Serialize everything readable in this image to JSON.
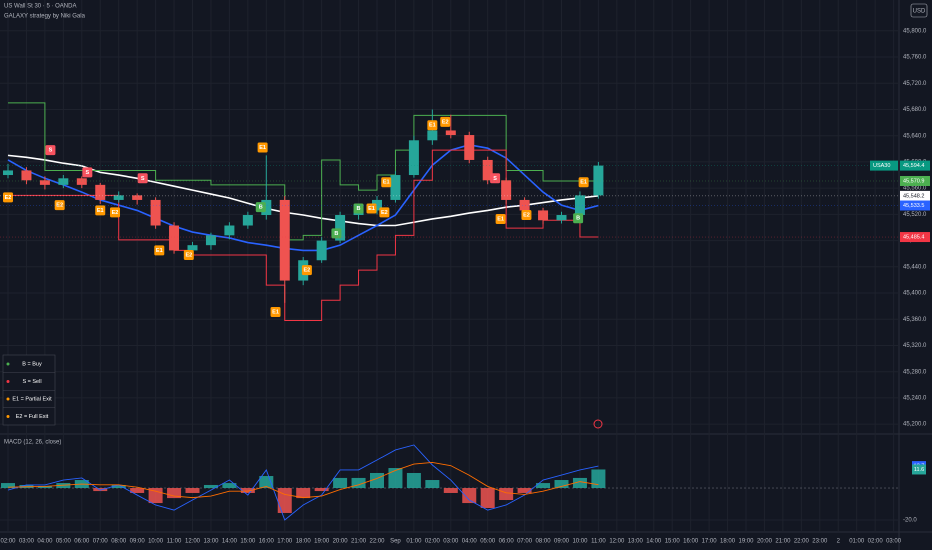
{
  "chart_data": [
    {
      "type": "candlestick",
      "title": "US Wall St 30 · 5 · OANDA",
      "subtitle": "GALAXY strategy by Niki Gala",
      "currency": "USD",
      "x": [
        0,
        1,
        2,
        3,
        4,
        5,
        6,
        7,
        8,
        9,
        10,
        11,
        12,
        13,
        14,
        15,
        16,
        17,
        18,
        19,
        20,
        21,
        22,
        23,
        24,
        25,
        26,
        27,
        28,
        29,
        30,
        31,
        32
      ],
      "open": [
        45580,
        45587,
        45572,
        45565,
        45575,
        45565,
        45542,
        45549,
        45542,
        45503,
        45465,
        45473,
        45488,
        45503,
        45519,
        45542,
        45419,
        45450,
        45480,
        45519,
        45526,
        45542,
        45580,
        45633,
        45648,
        45641,
        45603,
        45572,
        45542,
        45526,
        45511,
        45519,
        45549
      ],
      "high": [
        45597,
        45592,
        45578,
        45580,
        45578,
        45568,
        45555,
        45552,
        45546,
        45508,
        45478,
        45492,
        45508,
        45524,
        45610,
        45548,
        45455,
        45486,
        45524,
        45532,
        45548,
        45586,
        45640,
        45680,
        45672,
        45646,
        45608,
        45576,
        45546,
        45530,
        45524,
        45555,
        45600
      ],
      "low": [
        45575,
        45566,
        45558,
        45560,
        45560,
        45536,
        45538,
        45535,
        45498,
        45460,
        45458,
        45466,
        45482,
        45498,
        45512,
        45385,
        45412,
        45446,
        45476,
        45512,
        45520,
        45538,
        45576,
        45626,
        45636,
        45598,
        45566,
        45536,
        45520,
        45505,
        45506,
        45514,
        45544
      ],
      "close": [
        45587,
        45572,
        45565,
        45575,
        45565,
        45542,
        45549,
        45542,
        45503,
        45465,
        45473,
        45488,
        45503,
        45519,
        45542,
        45419,
        45450,
        45480,
        45519,
        45526,
        45542,
        45580,
        45633,
        45648,
        45641,
        45603,
        45572,
        45542,
        45526,
        45511,
        45519,
        45549,
        45594.4
      ],
      "up_color": "#26a69a",
      "down_color": "#ef5350",
      "lines": [
        {
          "color": "#ffffff",
          "step": false,
          "values": [
            45610,
            45607,
            45603,
            45598,
            45594,
            45584,
            45580,
            45575,
            45569,
            45563,
            45557,
            45551,
            45545,
            45537,
            45529,
            45523,
            45519,
            45514,
            45510,
            45506,
            45503,
            45503,
            45508,
            45513,
            45517,
            45522,
            45526,
            45531,
            45534,
            45538,
            45542,
            45545,
            45548.2
          ]
        },
        {
          "color": "#2962ff",
          "step": false,
          "values": [
            45603,
            45587,
            45575,
            45565,
            45554,
            45542,
            45534,
            45526,
            45514,
            45502,
            45493,
            45488,
            45484,
            45477,
            45473,
            45468,
            45465,
            45465,
            45473,
            45488,
            45503,
            45519,
            45557,
            45595,
            45618,
            45626,
            45621,
            45606,
            45580,
            45554,
            45534,
            45526,
            45533.5
          ]
        },
        {
          "color": "#4caf50",
          "step": true,
          "values": [
            45690,
            45690,
            45587,
            45587,
            45587,
            45587,
            45587,
            45587,
            45572,
            45572,
            45572,
            45565,
            45565,
            45565,
            45565,
            45481,
            45488,
            45603,
            45565,
            45557,
            45580,
            45618,
            45671,
            45671,
            45671,
            45671,
            45671,
            45587,
            45587,
            45570.9,
            45570.9,
            45570.9,
            45570.9
          ]
        },
        {
          "color": "#f23645",
          "step": true,
          "values": [
            45549,
            45549,
            45549,
            45549,
            45549,
            45549,
            45481,
            45481,
            45481,
            45465,
            45458,
            45458,
            45458,
            45458,
            45412,
            45358,
            45358,
            45389,
            45412,
            45435,
            45458,
            45488,
            45572,
            45618,
            45618,
            45618,
            45618,
            45499,
            45499,
            45511,
            45511,
            45485.4,
            45485.4
          ]
        }
      ],
      "signals": [
        {
          "label": "E2",
          "x": 0,
          "price": 45546,
          "color": "#ff9800"
        },
        {
          "label": "S",
          "x": 2.3,
          "price": 45618,
          "color": "#f7525f"
        },
        {
          "label": "E2",
          "x": 2.8,
          "price": 45534,
          "color": "#ff9800"
        },
        {
          "label": "S",
          "x": 4.3,
          "price": 45584,
          "color": "#f7525f"
        },
        {
          "label": "E1",
          "x": 5,
          "price": 45526,
          "color": "#ff9800"
        },
        {
          "label": "E2",
          "x": 5.8,
          "price": 45523,
          "color": "#ff9800"
        },
        {
          "label": "S",
          "x": 7.3,
          "price": 45575,
          "color": "#f7525f"
        },
        {
          "label": "E1",
          "x": 8.2,
          "price": 45465,
          "color": "#ff9800"
        },
        {
          "label": "E2",
          "x": 9.8,
          "price": 45458,
          "color": "#ff9800"
        },
        {
          "label": "B",
          "x": 13.7,
          "price": 45531,
          "color": "#4caf50"
        },
        {
          "label": "E1",
          "x": 13.8,
          "price": 45622,
          "color": "#ff9800"
        },
        {
          "label": "E1",
          "x": 14.5,
          "price": 45371,
          "color": "#ff9800"
        },
        {
          "label": "E2",
          "x": 16.2,
          "price": 45435,
          "color": "#ff9800"
        },
        {
          "label": "B",
          "x": 17.8,
          "price": 45491,
          "color": "#4caf50"
        },
        {
          "label": "B",
          "x": 19,
          "price": 45529,
          "color": "#4caf50"
        },
        {
          "label": "E1",
          "x": 19.7,
          "price": 45529,
          "color": "#ff9800"
        },
        {
          "label": "E2",
          "x": 20.4,
          "price": 45523,
          "color": "#ff9800"
        },
        {
          "label": "E1",
          "x": 20.5,
          "price": 45569,
          "color": "#ff9800"
        },
        {
          "label": "E1",
          "x": 23,
          "price": 45656,
          "color": "#ff9800"
        },
        {
          "label": "E2",
          "x": 23.7,
          "price": 45661,
          "color": "#ff9800"
        },
        {
          "label": "S",
          "x": 26.4,
          "price": 45575,
          "color": "#f7525f"
        },
        {
          "label": "E1",
          "x": 26.7,
          "price": 45513,
          "color": "#ff9800"
        },
        {
          "label": "E2",
          "x": 28.1,
          "price": 45519,
          "color": "#ff9800"
        },
        {
          "label": "B",
          "x": 30.9,
          "price": 45514,
          "color": "#4caf50"
        },
        {
          "label": "E1",
          "x": 31.2,
          "price": 45569,
          "color": "#ff9800"
        }
      ],
      "legend": [
        {
          "text": "B = Buy",
          "color": "#4caf50"
        },
        {
          "text": "S = Sell",
          "color": "#f23645"
        },
        {
          "text": "E1 = Partial Exit",
          "color": "#ff9800"
        },
        {
          "text": "E2 = Full Exit",
          "color": "#ff9800"
        }
      ],
      "price_tags": [
        {
          "value": 45594.4,
          "label": "45,594.4",
          "name": "USA30",
          "color": "#089981"
        },
        {
          "value": 45570.9,
          "label": "45,570.9",
          "color": "#4caf50"
        },
        {
          "value": 45548.2,
          "label": "45,548.2",
          "color": "#ffffff"
        },
        {
          "value": 45533.5,
          "label": "45,533.5",
          "color": "#2962ff"
        },
        {
          "value": 45485.4,
          "label": "45,485.4",
          "color": "#f23645"
        }
      ],
      "ylim": [
        45188,
        45847
      ],
      "yticks": [
        {
          "value": 45200,
          "label": "45,200.0"
        },
        {
          "value": 45240,
          "label": "45,240.0"
        },
        {
          "value": 45280,
          "label": "45,280.0"
        },
        {
          "value": 45320,
          "label": "45,320.0"
        },
        {
          "value": 45360,
          "label": "45,360.0"
        },
        {
          "value": 45400,
          "label": "45,400.0"
        },
        {
          "value": 45440,
          "label": "45,440.0"
        },
        {
          "value": 45480,
          "label": "45,480.0"
        },
        {
          "value": 45520,
          "label": "45,520.0"
        },
        {
          "value": 45560,
          "label": "45,560.0"
        },
        {
          "value": 45600,
          "label": "45,600.0"
        },
        {
          "value": 45640,
          "label": "45,640.0"
        },
        {
          "value": 45680,
          "label": "45,680.0"
        },
        {
          "value": 45720,
          "label": "45,720.0"
        },
        {
          "value": 45760,
          "label": "45,760.0"
        },
        {
          "value": 45800,
          "label": "45,800.0"
        }
      ],
      "xticks": [
        {
          "value": 0,
          "label": "02:00"
        },
        {
          "value": 1,
          "label": "03:00"
        },
        {
          "value": 2,
          "label": "04:00"
        },
        {
          "value": 3,
          "label": "05:00"
        },
        {
          "value": 4,
          "label": "06:00"
        },
        {
          "value": 5,
          "label": "07:00"
        },
        {
          "value": 6,
          "label": "08:00"
        },
        {
          "value": 7,
          "label": "09:00"
        },
        {
          "value": 8,
          "label": "10:00"
        },
        {
          "value": 9,
          "label": "11:00"
        },
        {
          "value": 10,
          "label": "12:00"
        },
        {
          "value": 11,
          "label": "13:00"
        },
        {
          "value": 12,
          "label": "14:00"
        },
        {
          "value": 13,
          "label": "15:00"
        },
        {
          "value": 14,
          "label": "16:00"
        },
        {
          "value": 15,
          "label": "17:00"
        },
        {
          "value": 16,
          "label": "18:00"
        },
        {
          "value": 17,
          "label": "19:00"
        },
        {
          "value": 18,
          "label": "20:00"
        },
        {
          "value": 19,
          "label": "21:00"
        },
        {
          "value": 20,
          "label": "22:00"
        },
        {
          "value": 21,
          "label": "Sep"
        },
        {
          "value": 22,
          "label": "01:00"
        },
        {
          "value": 23,
          "label": "02:00"
        },
        {
          "value": 24,
          "label": "03:00"
        },
        {
          "value": 25,
          "label": "04:00"
        },
        {
          "value": 26,
          "label": "05:00"
        },
        {
          "value": 27,
          "label": "06:00"
        },
        {
          "value": 28,
          "label": "07:00"
        },
        {
          "value": 29,
          "label": "08:00"
        },
        {
          "value": 30,
          "label": "09:00"
        },
        {
          "value": 31,
          "label": "10:00"
        },
        {
          "value": 32,
          "label": "11:00"
        },
        {
          "value": 33,
          "label": "12:00"
        },
        {
          "value": 34,
          "label": "13:00"
        },
        {
          "value": 35,
          "label": "14:00"
        },
        {
          "value": 36,
          "label": "15:00"
        },
        {
          "value": 37,
          "label": "16:00"
        },
        {
          "value": 38,
          "label": "17:00"
        },
        {
          "value": 39,
          "label": "18:00"
        },
        {
          "value": 40,
          "label": "19:00"
        },
        {
          "value": 41,
          "label": "20:00"
        },
        {
          "value": 42,
          "label": "21:00"
        },
        {
          "value": 43,
          "label": "22:00"
        },
        {
          "value": 44,
          "label": "23:00"
        },
        {
          "value": 45,
          "label": "2"
        },
        {
          "value": 46,
          "label": "01:00"
        },
        {
          "value": 47,
          "label": "02:00"
        },
        {
          "value": 48,
          "label": "03:00"
        }
      ],
      "grid": true
    },
    {
      "type": "macd",
      "title": "MACD (12, 26, close)",
      "histogram": {
        "pos_color": "#26a69a",
        "neg_color": "#ef5350",
        "values": [
          3.1,
          1.9,
          1.3,
          3.1,
          5,
          -1.9,
          1.9,
          -3.1,
          -9.4,
          -6.3,
          -3.1,
          1.9,
          3.1,
          -3.1,
          7.5,
          -15.6,
          -6.3,
          -1.9,
          6.3,
          6.3,
          9.4,
          12.5,
          9.4,
          5,
          -3.1,
          -9.4,
          -12.5,
          -7.5,
          -3.1,
          3.1,
          5,
          6.3,
          11.6
        ],
        "value_label": "11.6"
      },
      "series": [
        {
          "color": "#2962ff",
          "values": [
            -1.3,
            1.9,
            1.9,
            5,
            6.3,
            -1.3,
            1.9,
            -4.4,
            -10.6,
            -13.8,
            -7.5,
            -1.3,
            5,
            -4.4,
            11.3,
            -20,
            -10.6,
            -4.4,
            11.3,
            11.3,
            17.5,
            23.8,
            26.9,
            14.4,
            5,
            -7.5,
            -13.8,
            -10.6,
            -4.4,
            5,
            8.1,
            11.3,
            13.7
          ],
          "value_label": "13.7"
        },
        {
          "color": "#ff6d00",
          "values": [
            0.5,
            0.8,
            1,
            1.8,
            2.5,
            2,
            2,
            0.5,
            -2,
            -5,
            -6,
            -5,
            -2,
            -2,
            1,
            -4,
            -6,
            -5,
            -1,
            2,
            6,
            11,
            15,
            16,
            14,
            8,
            1,
            -3,
            -4,
            -2,
            1,
            4,
            2.1
          ]
        }
      ],
      "ylim": [
        -27.5,
        31.9
      ],
      "yticks": [
        {
          "value": -20,
          "label": "-20.0"
        }
      ]
    }
  ]
}
